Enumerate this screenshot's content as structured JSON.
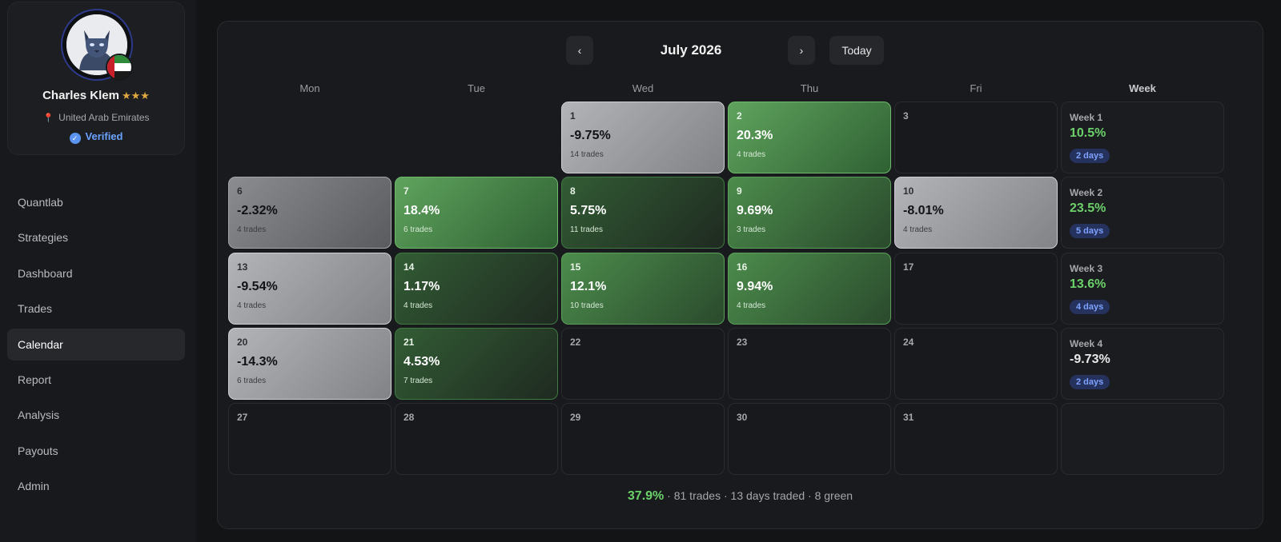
{
  "profile": {
    "name": "Charles Klem",
    "stars": "★★★",
    "location": "United Arab Emirates",
    "verified": "Verified"
  },
  "nav": {
    "items": [
      {
        "label": "Quantlab"
      },
      {
        "label": "Strategies"
      },
      {
        "label": "Dashboard"
      },
      {
        "label": "Trades"
      },
      {
        "label": "Calendar",
        "active": true
      },
      {
        "label": "Report"
      },
      {
        "label": "Analysis"
      },
      {
        "label": "Payouts"
      },
      {
        "label": "Admin"
      }
    ]
  },
  "calendar": {
    "prev": "‹",
    "next": "›",
    "title": "July 2026",
    "today": "Today",
    "days_of_week": [
      "Mon",
      "Tue",
      "Wed",
      "Thu",
      "Fri",
      "Week"
    ],
    "rows": [
      [
        null,
        null,
        {
          "day": "1",
          "pct": "-9.75%",
          "trades": "14 trades",
          "tone": "gray"
        },
        {
          "day": "2",
          "pct": "20.3%",
          "trades": "4 trades",
          "tone": "green-bright"
        },
        {
          "day": "3"
        }
      ],
      [
        {
          "day": "6",
          "pct": "-2.32%",
          "trades": "4 trades",
          "tone": "gray-dark"
        },
        {
          "day": "7",
          "pct": "18.4%",
          "trades": "6 trades",
          "tone": "green-bright"
        },
        {
          "day": "8",
          "pct": "5.75%",
          "trades": "11 trades",
          "tone": "green-dark"
        },
        {
          "day": "9",
          "pct": "9.69%",
          "trades": "3 trades",
          "tone": "green-mid"
        },
        {
          "day": "10",
          "pct": "-8.01%",
          "trades": "4 trades",
          "tone": "gray"
        }
      ],
      [
        {
          "day": "13",
          "pct": "-9.54%",
          "trades": "4 trades",
          "tone": "gray"
        },
        {
          "day": "14",
          "pct": "1.17%",
          "trades": "4 trades",
          "tone": "green-dark"
        },
        {
          "day": "15",
          "pct": "12.1%",
          "trades": "10 trades",
          "tone": "green-mid"
        },
        {
          "day": "16",
          "pct": "9.94%",
          "trades": "4 trades",
          "tone": "green-mid"
        },
        {
          "day": "17"
        }
      ],
      [
        {
          "day": "20",
          "pct": "-14.3%",
          "trades": "6 trades",
          "tone": "gray"
        },
        {
          "day": "21",
          "pct": "4.53%",
          "trades": "7 trades",
          "tone": "green-dark"
        },
        {
          "day": "22"
        },
        {
          "day": "23"
        },
        {
          "day": "24"
        }
      ],
      [
        {
          "day": "27"
        },
        {
          "day": "28"
        },
        {
          "day": "29"
        },
        {
          "day": "30"
        },
        {
          "day": "31"
        }
      ]
    ],
    "weeks": [
      {
        "label": "Week 1",
        "pct": "10.5%",
        "days": "2 days",
        "positive": true
      },
      {
        "label": "Week 2",
        "pct": "23.5%",
        "days": "5 days",
        "positive": true
      },
      {
        "label": "Week 3",
        "pct": "13.6%",
        "days": "4 days",
        "positive": true
      },
      {
        "label": "Week 4",
        "pct": "-9.73%",
        "days": "2 days",
        "positive": false
      },
      null
    ]
  },
  "summary": {
    "pct": "37.9%",
    "rest": " · 81 trades · 13 days traded · 8 green"
  },
  "colors": {
    "positive": "#6cd16a",
    "accent": "#6aa3ff",
    "background": "#131416"
  }
}
